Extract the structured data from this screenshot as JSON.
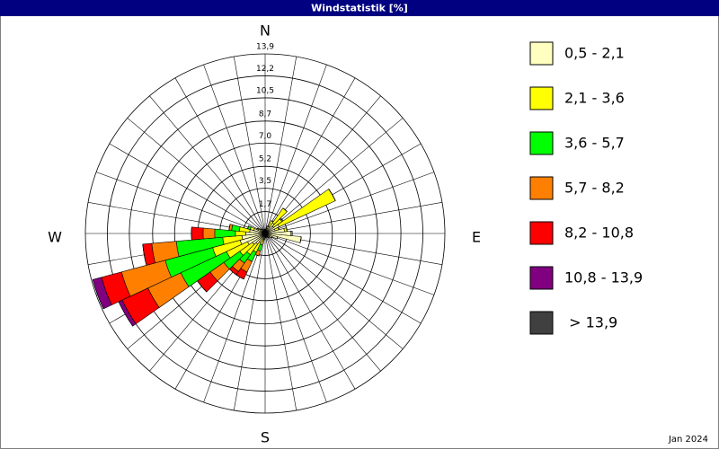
{
  "chart_data": {
    "type": "windrose",
    "title": "Windstatistik [%]",
    "footer": "Jan 2024",
    "compass_labels": [
      "N",
      "E",
      "S",
      "W"
    ],
    "x": [
      10,
      20,
      30,
      40,
      50,
      60,
      70,
      80,
      90,
      100,
      110,
      120,
      130,
      140,
      150,
      160,
      170,
      180,
      190,
      200,
      210,
      220,
      230,
      240,
      250,
      260,
      270,
      280,
      290,
      300,
      310,
      320,
      330,
      340,
      350,
      360
    ],
    "ylim": [
      0,
      13.9
    ],
    "yticks": [
      {
        "value": 1.7,
        "label": "1,7"
      },
      {
        "value": 3.5,
        "label": "3,5"
      },
      {
        "value": 5.2,
        "label": "5,2"
      },
      {
        "value": 7.0,
        "label": "7,0"
      },
      {
        "value": 8.7,
        "label": "8,7"
      },
      {
        "value": 10.5,
        "label": "10,5"
      },
      {
        "value": 12.2,
        "label": "12,2"
      },
      {
        "value": 13.9,
        "label": "13,9"
      }
    ],
    "grid": true,
    "series": [
      {
        "name": "0,5 - 2,1",
        "color": "#ffffc0",
        "values": [
          0.3,
          0.4,
          0.6,
          1.0,
          0.8,
          1.2,
          0.8,
          1.5,
          2.0,
          2.8,
          1.0,
          0.6,
          0.4,
          0.4,
          0.3,
          0.3,
          0.3,
          0.3,
          0.4,
          0.5,
          0.8,
          1.0,
          1.2,
          1.5,
          2.0,
          1.8,
          1.5,
          1.2,
          0.9,
          0.6,
          0.5,
          0.4,
          0.4,
          0.3,
          0.3,
          0.3
        ]
      },
      {
        "name": "2,1 - 3,6",
        "color": "#ffff00",
        "values": [
          0,
          0.2,
          0.5,
          1.4,
          0.8,
          4.8,
          0.3,
          0.2,
          0.1,
          0,
          0,
          0,
          0,
          0,
          0,
          0,
          0,
          0,
          0.1,
          0.4,
          0.8,
          1.0,
          1.2,
          1.8,
          2.2,
          1.5,
          0.8,
          0.8,
          0.3,
          0.1,
          0,
          0,
          0,
          0,
          0,
          0
        ]
      },
      {
        "name": "3,6 - 5,7",
        "color": "#00ff00",
        "values": [
          0,
          0,
          0,
          0,
          0,
          0,
          0,
          0,
          0,
          0,
          0,
          0,
          0,
          0,
          0,
          0,
          0,
          0,
          0,
          0.5,
          0.8,
          0.8,
          1.5,
          3.9,
          3.8,
          3.6,
          1.6,
          0.6,
          0.2,
          0,
          0,
          0,
          0,
          0,
          0,
          0
        ]
      },
      {
        "name": "5,7 - 8,2",
        "color": "#ff8000",
        "values": [
          0,
          0,
          0,
          0,
          0,
          0,
          0,
          0,
          0,
          0,
          0,
          0,
          0,
          0,
          0,
          0,
          0,
          0,
          0,
          0.4,
          0.9,
          0.8,
          1.3,
          2.8,
          3.5,
          1.9,
          0.9,
          0.2,
          0,
          0,
          0,
          0,
          0,
          0,
          0,
          0
        ]
      },
      {
        "name": "8,2 - 10,8",
        "color": "#ff0000",
        "values": [
          0,
          0,
          0,
          0,
          0,
          0,
          0,
          0,
          0,
          0,
          0,
          0,
          0,
          0,
          0,
          0,
          0,
          0,
          0,
          0,
          0.6,
          0.3,
          1.2,
          2.2,
          1.6,
          0.7,
          0.9,
          0,
          0,
          0,
          0,
          0,
          0,
          0,
          0,
          0
        ]
      },
      {
        "name": "10,8 - 13,9",
        "color": "#800080",
        "values": [
          0,
          0,
          0,
          0,
          0,
          0,
          0,
          0,
          0,
          0,
          0,
          0,
          0,
          0,
          0,
          0,
          0,
          0,
          0,
          0,
          0,
          0,
          0,
          0.3,
          0.7,
          0,
          0,
          0,
          0,
          0,
          0,
          0,
          0,
          0,
          0,
          0
        ]
      },
      {
        "name": " > 13,9",
        "color": "#404040",
        "values": [
          0,
          0,
          0,
          0,
          0,
          0,
          0,
          0,
          0,
          0,
          0,
          0,
          0,
          0,
          0,
          0,
          0,
          0,
          0,
          0,
          0,
          0,
          0,
          0,
          0,
          0,
          0,
          0,
          0,
          0,
          0,
          0,
          0,
          0,
          0,
          0
        ]
      }
    ]
  }
}
